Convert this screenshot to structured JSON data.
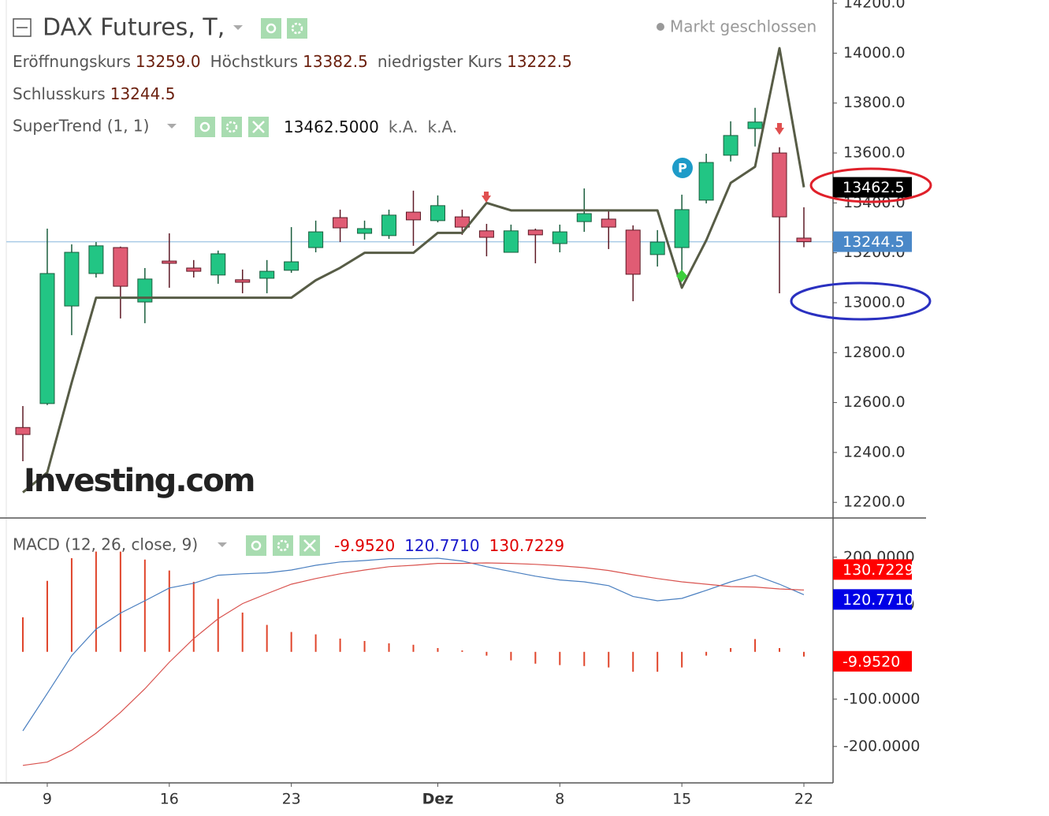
{
  "chart_data": [
    {
      "type": "candlestick",
      "title": "DAX Futures, T,",
      "status": "Markt geschlossen",
      "watermark": "Investing.com",
      "categories": [
        null,
        "9",
        null,
        null,
        null,
        null,
        "16",
        null,
        null,
        null,
        null,
        "23",
        null,
        null,
        null,
        null,
        null,
        "Dez",
        null,
        null,
        null,
        null,
        "8",
        null,
        null,
        null,
        null,
        "15",
        null,
        null,
        null,
        null,
        "22"
      ],
      "open": [
        12500,
        12596,
        12987,
        13117,
        13221,
        13003,
        13167,
        13139,
        13111,
        13092,
        13098,
        13130,
        13221,
        13341,
        13278,
        13269,
        13363,
        13329,
        13344,
        13288,
        13202,
        13291,
        13237,
        13325,
        13335,
        13291,
        13193,
        13221,
        13411,
        13591,
        13698,
        13600,
        13259
      ],
      "high": [
        12586,
        13297,
        13234,
        13243,
        13225,
        13139,
        13278,
        13171,
        13209,
        13133,
        13171,
        13303,
        13329,
        13373,
        13329,
        13373,
        13449,
        13430,
        13373,
        13316,
        13313,
        13297,
        13313,
        13458,
        13367,
        13310,
        13291,
        13433,
        13597,
        13727,
        13781,
        13623,
        13382.5
      ],
      "low": [
        12365,
        12590,
        12870,
        13101,
        12937,
        12918,
        13060,
        13101,
        13076,
        13038,
        13038,
        13120,
        13202,
        13243,
        13253,
        13256,
        13228,
        13322,
        13272,
        13186,
        13202,
        13158,
        13202,
        13284,
        13215,
        13006,
        13145,
        13123,
        13398,
        13566,
        13626,
        13038,
        13222.5
      ],
      "close": [
        12472,
        13117,
        13202,
        13228,
        13066,
        13095,
        13158,
        13126,
        13196,
        13082,
        13126,
        13164,
        13284,
        13300,
        13297,
        13351,
        13332,
        13389,
        13303,
        13262,
        13288,
        13272,
        13284,
        13357,
        13303,
        13114,
        13243,
        13373,
        13562,
        13670,
        13724,
        13344,
        13244.5
      ],
      "up_color": "#22c584",
      "down_color": "#e05c74",
      "ohlc_legend": [
        {
          "label": "Eröffnungskurs",
          "value_label": "13259.0"
        },
        {
          "label": "Höchstkurs",
          "value_label": "13382.5"
        },
        {
          "label": "niedrigster Kurs",
          "value_label": "13222.5"
        },
        {
          "label": "Schlusskurs",
          "value_label": "13244.5"
        }
      ],
      "close_label": "13244.5",
      "overlay": {
        "name": "SuperTrend (1, 1)",
        "color": "#575c46",
        "values": [
          12240,
          12320,
          12680,
          13020,
          13020,
          13020,
          13020,
          13020,
          13020,
          13020,
          13020,
          13020,
          13090,
          13140,
          13200,
          13200,
          13200,
          13280,
          13280,
          13400,
          13370,
          13370,
          13370,
          13370,
          13370,
          13370,
          13370,
          13060,
          13250,
          13480,
          13545,
          14020,
          13462.5
        ],
        "legend_labels": [
          "13462.5000",
          "k.A.",
          "k.A."
        ],
        "last_label": "13462.5"
      },
      "ylim": [
        12137.5,
        14213
      ],
      "yticks": [
        {
          "value": 12200,
          "label": "12200.0"
        },
        {
          "value": 12400,
          "label": "12400.0"
        },
        {
          "value": 12600,
          "label": "12600.0"
        },
        {
          "value": 12800,
          "label": "12800.0"
        },
        {
          "value": 13000,
          "label": "13000.0"
        },
        {
          "value": 13200,
          "label": "13200.0"
        },
        {
          "value": 13400,
          "label": "13400.0"
        },
        {
          "value": 13600,
          "label": "13600.0"
        },
        {
          "value": 13800,
          "label": "13800.0"
        },
        {
          "value": 14000,
          "label": "14000.0"
        },
        {
          "value": 14200,
          "label": "14200.0"
        }
      ]
    },
    {
      "type": "macd",
      "title": "MACD (12, 26, close, 9)",
      "series": [
        {
          "kind": "histogram",
          "color": "#e0452b",
          "last_label": "-9.9520",
          "values": [
            73,
            150,
            198,
            212,
            212,
            195,
            172,
            148,
            112,
            83,
            57,
            42,
            37,
            28,
            23,
            18,
            15,
            8,
            3,
            -8,
            -18,
            -25,
            -28,
            -30,
            -33,
            -42,
            -42,
            -33,
            -8,
            8,
            27,
            8,
            -9.952
          ]
        },
        {
          "kind": "line",
          "color": "#4a7fc0",
          "last_label": "120.7710",
          "values": [
            -167,
            -88,
            -8,
            48,
            82,
            108,
            135,
            145,
            162,
            165,
            167,
            173,
            183,
            190,
            193,
            197,
            197,
            198,
            192,
            180,
            170,
            160,
            152,
            148,
            140,
            117,
            108,
            113,
            130,
            148,
            162,
            143,
            120.771
          ]
        },
        {
          "kind": "line",
          "color": "#d9534f",
          "last_label": "130.7229",
          "values": [
            -240,
            -233,
            -208,
            -172,
            -128,
            -78,
            -22,
            28,
            70,
            102,
            123,
            143,
            155,
            165,
            173,
            180,
            183,
            187,
            187,
            188,
            187,
            185,
            182,
            178,
            172,
            163,
            155,
            148,
            143,
            138,
            137,
            133,
            130.7229
          ]
        }
      ],
      "ylim": [
        -277,
        283
      ],
      "yticks": [
        {
          "value": -200,
          "label": "-200.0000"
        },
        {
          "value": -100,
          "label": "-100.0000"
        },
        {
          "value": 100,
          "label": "100.0000"
        },
        {
          "value": 200,
          "label": "200.0000"
        }
      ]
    }
  ]
}
